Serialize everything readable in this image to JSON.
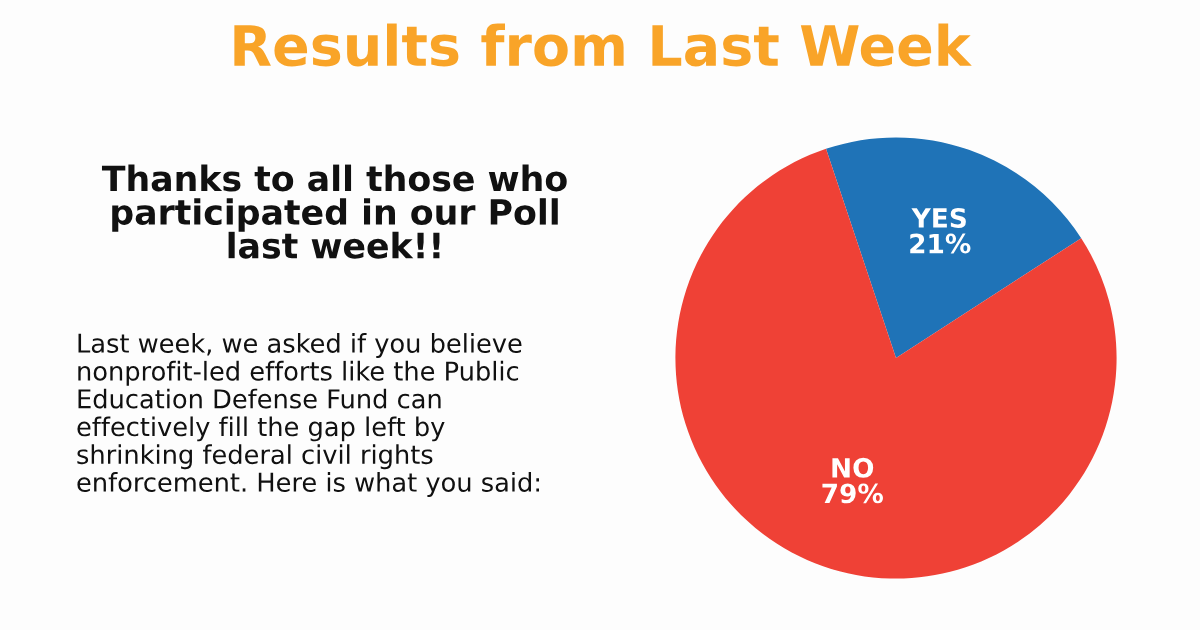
{
  "chart_data": {
    "type": "pie",
    "title": "Results from Last Week",
    "categories": [
      "YES",
      "NO"
    ],
    "values": [
      21,
      79
    ],
    "colors": [
      "#1f73b7",
      "#ef4136"
    ],
    "value_labels": [
      "21%",
      "79%"
    ],
    "legend": false,
    "annotations": [
      "Thanks to all those who\nparticipated in our Poll\nlast week!!",
      "Last week, we asked if you believe\nnonprofit-led efforts like the Public\nEducation Defense Fund can\neffectively fill the gap left by\nshrinking federal civil rights\nenforcement. Here is what you said:"
    ]
  }
}
